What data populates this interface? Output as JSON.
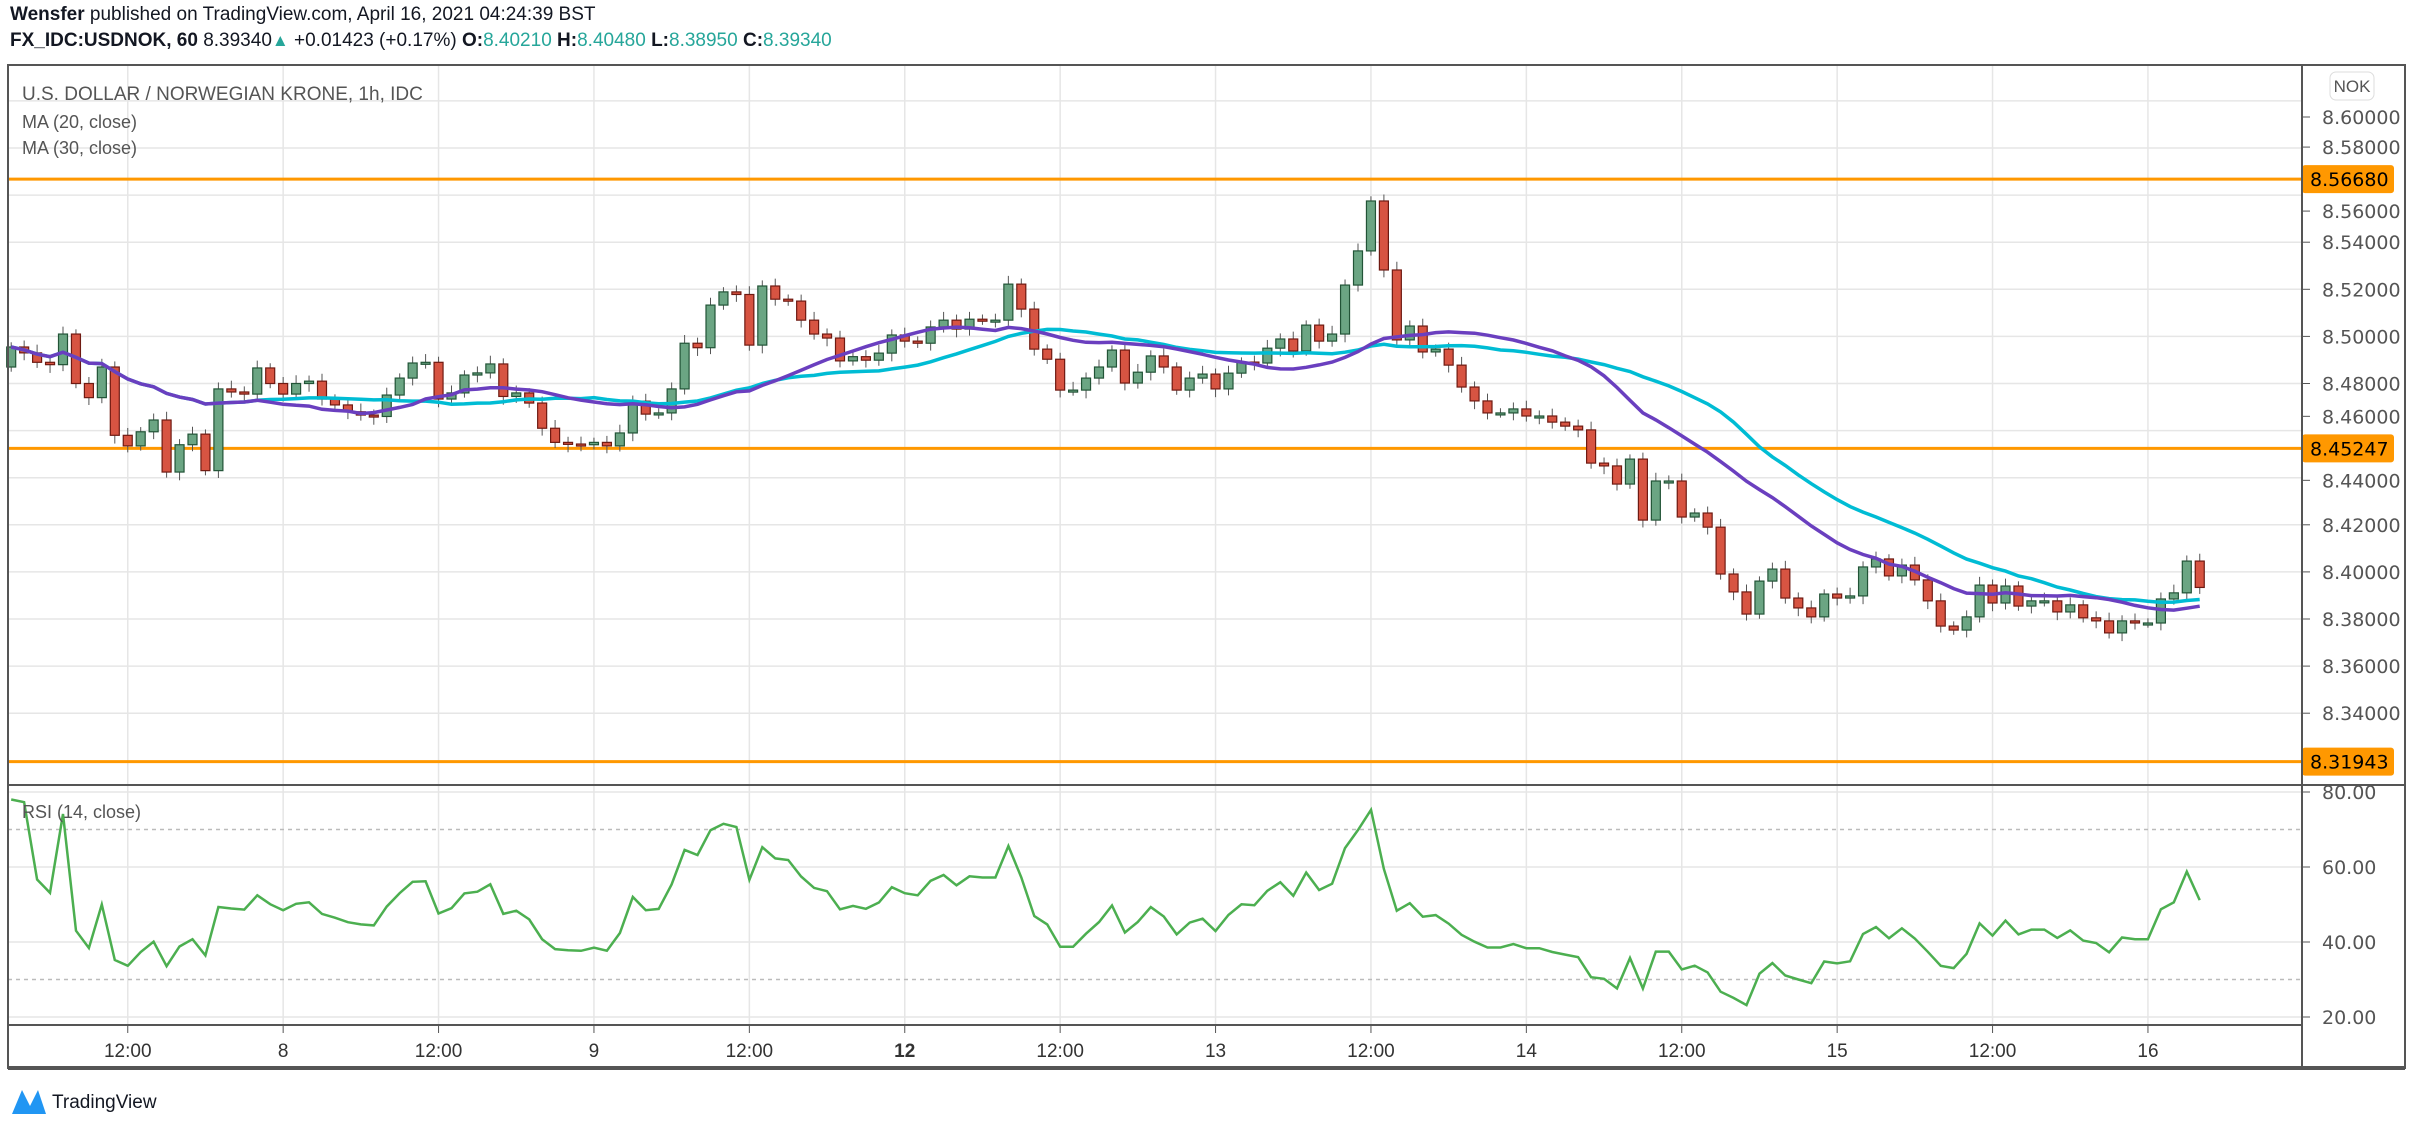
{
  "header": {
    "author": "Wensfer",
    "published": "published on TradingView.com, April 16, 2021 04:24:39 BST",
    "symbol": "FX_IDC:USDNOK, 60",
    "last": "8.39340",
    "change": "+0.01423 (+0.17%)",
    "o_label": "O:",
    "o": "8.40210",
    "h_label": "H:",
    "h": "8.40480",
    "l_label": "L:",
    "l": "8.38950",
    "c_label": "C:",
    "c": "8.39340"
  },
  "legend": {
    "title": "U.S. DOLLAR / NORWEGIAN KRONE, 1h, IDC",
    "ma20": "MA (20, close)",
    "ma30": "MA (30, close)",
    "rsi": "RSI (14, close)"
  },
  "currency_badge": "NOK",
  "footer": {
    "logo_text": "TradingView"
  },
  "colors": {
    "up": "#6ba583",
    "down": "#d75442",
    "ma20": "#6a3fbf",
    "ma30": "#00bcd4",
    "rsi": "#4caf50",
    "hline": "#ff9800",
    "logo": "#2196f3"
  },
  "chart_data": {
    "type": "candlestick",
    "interval": "1h",
    "first_open": 8.487,
    "close": [
      8.4955,
      8.493,
      8.489,
      8.488,
      8.501,
      8.48,
      8.474,
      8.487,
      8.458,
      8.4535,
      8.4595,
      8.4645,
      8.4424,
      8.454,
      8.4585,
      8.443,
      8.4777,
      8.4764,
      8.4755,
      8.4866,
      8.48,
      8.4755,
      8.48,
      8.481,
      8.4734,
      8.4709,
      8.468,
      8.4666,
      8.466,
      8.4751,
      8.4823,
      8.4887,
      8.489,
      8.4734,
      8.476,
      8.4836,
      8.4845,
      8.4883,
      8.4745,
      8.476,
      8.4717,
      8.461,
      8.455,
      8.4543,
      8.454,
      8.455,
      8.4535,
      8.459,
      8.4725,
      8.467,
      8.4675,
      8.4777,
      8.4971,
      8.4952,
      8.5133,
      8.5189,
      8.5178,
      8.4963,
      8.5214,
      8.5158,
      8.515,
      8.5069,
      8.501,
      8.4993,
      8.4896,
      8.4914,
      8.4899,
      8.4929,
      8.5006,
      8.498,
      8.4971,
      8.504,
      8.5069,
      8.5031,
      8.5073,
      8.5069,
      8.5069,
      8.5222,
      8.5116,
      8.4946,
      8.4903,
      8.4772,
      8.4772,
      8.4823,
      8.487,
      8.4942,
      8.4802,
      8.4848,
      8.4917,
      8.487,
      8.4772,
      8.4823,
      8.484,
      8.4777,
      8.4844,
      8.4891,
      8.4887,
      8.495,
      8.4989,
      8.4938,
      8.5048,
      8.498,
      8.501,
      8.5218,
      8.5363,
      8.5575,
      8.5282,
      8.4985,
      8.5044,
      8.4934,
      8.4946,
      8.4878,
      8.4785,
      8.4726,
      8.4675,
      8.4675,
      8.4692,
      8.4662,
      8.4662,
      8.4636,
      8.4619,
      8.4603,
      8.4462,
      8.445,
      8.4373,
      8.4479,
      8.422,
      8.4386,
      8.4386,
      8.4233,
      8.425,
      8.419,
      8.3991,
      8.3915,
      8.3821,
      8.3961,
      8.4012,
      8.3889,
      8.3847,
      8.3809,
      8.3906,
      8.3889,
      8.3898,
      8.4021,
      8.4055,
      8.3983,
      8.4029,
      8.3966,
      8.3877,
      8.377,
      8.3753,
      8.3809,
      8.3944,
      8.3868,
      8.394,
      8.3855,
      8.3877,
      8.3877,
      8.383,
      8.386,
      8.3805,
      8.3792,
      8.3741,
      8.3792,
      8.3783,
      8.3783,
      8.3885,
      8.3911,
      8.4046,
      8.3934
    ],
    "horizontal_levels": [
      "8.56680",
      "8.45247",
      "8.31943"
    ],
    "price_ticks": [
      "8.34000",
      "8.36000",
      "8.38000",
      "8.40000",
      "8.42000",
      "8.44000",
      "8.46000",
      "8.48000",
      "8.50000",
      "8.52000",
      "8.54000",
      "8.56000",
      "8.58000",
      "8.60000"
    ],
    "ylim": [
      8.31,
      8.615
    ],
    "rsi_ticks": [
      "20.00",
      "40.00",
      "60.00",
      "80.00"
    ],
    "rsi_bands": [
      30,
      70
    ],
    "rsi_ylim": [
      17.5,
      80.5
    ],
    "time_ticks": [
      "12:00",
      "8",
      "12:00",
      "9",
      "12:00",
      "12",
      "12:00",
      "13",
      "12:00",
      "14",
      "12:00",
      "15",
      "12:00",
      "16"
    ],
    "grid": true
  }
}
